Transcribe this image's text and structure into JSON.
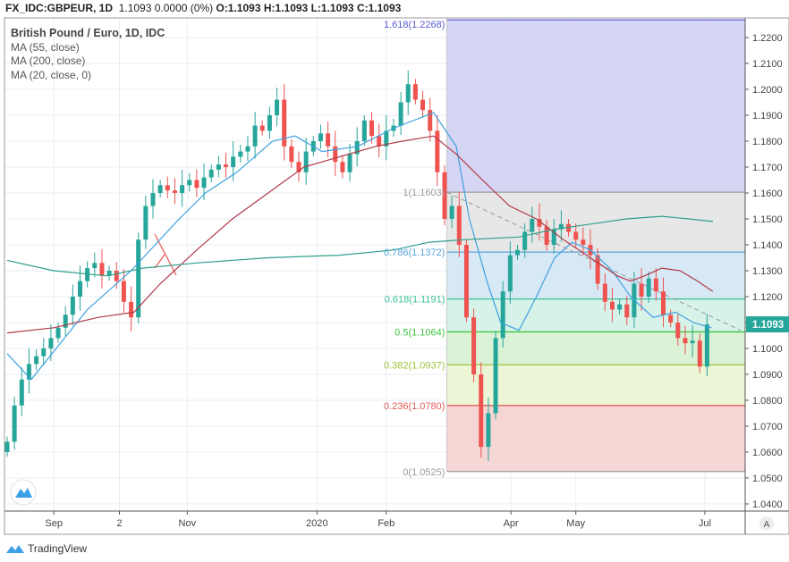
{
  "header": {
    "symbol": "FX_IDC:GBPEUR, 1D",
    "last": "1.1093",
    "change": "0.0000 (0%)",
    "open": "O:1.1093",
    "high": "H:1.1093",
    "low": "L:1.1093",
    "close": "C:1.1093"
  },
  "legend": {
    "title": "British Pound / Euro, 1D, IDC",
    "ma1": "MA (55, close)",
    "ma2": "MA (200, close)",
    "ma3": "MA (20, close, 0)"
  },
  "brand": "TradingView",
  "auto_button": "A",
  "colors": {
    "up": "#26a69a",
    "down": "#ef5350",
    "ma20": "#3fa1e0",
    "ma55": "#b03a48",
    "ma200": "#2f9f8c",
    "last_badge": "#26a69a"
  },
  "chart_data": {
    "type": "candlestick",
    "title": "British Pound / Euro, 1D, IDC",
    "ylim": [
      1.035,
      1.2272
    ],
    "y_ticks": [
      "1.0400",
      "1.0500",
      "1.0600",
      "1.0700",
      "1.0800",
      "1.0900",
      "1.1000",
      "1.1100",
      "1.1200",
      "1.1300",
      "1.1400",
      "1.1500",
      "1.1600",
      "1.1700",
      "1.1800",
      "1.1900",
      "1.2000",
      "1.2100",
      "1.2200"
    ],
    "x_ticks": [
      {
        "label": "Sep",
        "i": 6.4
      },
      {
        "label": "2",
        "i": 15.4
      },
      {
        "label": "Nov",
        "i": 24.7
      },
      {
        "label": "2020",
        "i": 42.5
      },
      {
        "label": "Feb",
        "i": 52.0
      },
      {
        "label": "Apr",
        "i": 69.1
      },
      {
        "label": "May",
        "i": 78.0
      },
      {
        "label": "Jul",
        "i": 95.7
      }
    ],
    "closes": [
      1.064,
      1.078,
      1.088,
      1.094,
      1.097,
      1.1,
      1.104,
      1.108,
      1.113,
      1.12,
      1.126,
      1.131,
      1.133,
      1.128,
      1.13,
      1.126,
      1.118,
      1.112,
      1.142,
      1.155,
      1.16,
      1.163,
      1.161,
      1.16,
      1.163,
      1.165,
      1.162,
      1.166,
      1.169,
      1.171,
      1.17,
      1.174,
      1.176,
      1.178,
      1.186,
      1.184,
      1.19,
      1.196,
      1.178,
      1.172,
      1.168,
      1.176,
      1.18,
      1.183,
      1.178,
      1.172,
      1.168,
      1.175,
      1.18,
      1.188,
      1.182,
      1.178,
      1.184,
      1.186,
      1.195,
      1.202,
      1.196,
      1.192,
      1.184,
      1.168,
      1.15,
      1.155,
      1.14,
      1.112,
      1.09,
      1.062,
      1.075,
      1.104,
      1.122,
      1.136,
      1.138,
      1.145,
      1.15,
      1.147,
      1.14,
      1.146,
      1.148,
      1.145,
      1.142,
      1.14,
      1.136,
      1.125,
      1.118,
      1.115,
      1.117,
      1.112,
      1.125,
      1.12,
      1.127,
      1.122,
      1.113,
      1.11,
      1.104,
      1.102,
      1.103,
      1.093,
      1.1093
    ],
    "series": [
      {
        "name": "MA (20, close, 0)",
        "points": [
          [
            0,
            1.098
          ],
          [
            3.3,
            1.088
          ],
          [
            11,
            1.115
          ],
          [
            17,
            1.13
          ],
          [
            23.6,
            1.15
          ],
          [
            27.2,
            1.16
          ],
          [
            31.5,
            1.168
          ],
          [
            36.4,
            1.18
          ],
          [
            39.5,
            1.182
          ],
          [
            43.2,
            1.176
          ],
          [
            48.1,
            1.178
          ],
          [
            53,
            1.185
          ],
          [
            58.5,
            1.191
          ],
          [
            61.6,
            1.178
          ],
          [
            63.4,
            1.15
          ],
          [
            65.9,
            1.125
          ],
          [
            67.7,
            1.11
          ],
          [
            70.2,
            1.107
          ],
          [
            72.6,
            1.12
          ],
          [
            75.1,
            1.135
          ],
          [
            77.5,
            1.141
          ],
          [
            80,
            1.138
          ],
          [
            83,
            1.13
          ],
          [
            85.5,
            1.12
          ],
          [
            88.6,
            1.112
          ],
          [
            91.7,
            1.114
          ],
          [
            94.1,
            1.11
          ],
          [
            96.6,
            1.108
          ]
        ]
      },
      {
        "name": "MA (55, close)",
        "points": [
          [
            0,
            1.106
          ],
          [
            6.4,
            1.108
          ],
          [
            12.5,
            1.112
          ],
          [
            17.4,
            1.114
          ],
          [
            21,
            1.125
          ],
          [
            26,
            1.138
          ],
          [
            30.9,
            1.15
          ],
          [
            35.8,
            1.16
          ],
          [
            40.7,
            1.17
          ],
          [
            45.6,
            1.174
          ],
          [
            50.6,
            1.178
          ],
          [
            54.2,
            1.18
          ],
          [
            58.5,
            1.182
          ],
          [
            61.6,
            1.175
          ],
          [
            65.2,
            1.165
          ],
          [
            68.9,
            1.155
          ],
          [
            72.6,
            1.15
          ],
          [
            76.3,
            1.142
          ],
          [
            80,
            1.135
          ],
          [
            83.7,
            1.128
          ],
          [
            85.5,
            1.126
          ],
          [
            87.4,
            1.128
          ],
          [
            89.8,
            1.131
          ],
          [
            92.3,
            1.13
          ],
          [
            94.7,
            1.126
          ],
          [
            96.8,
            1.122
          ]
        ]
      },
      {
        "name": "MA (200, close)",
        "points": [
          [
            0,
            1.134
          ],
          [
            6.4,
            1.13
          ],
          [
            13.7,
            1.128
          ],
          [
            18.6,
            1.131
          ],
          [
            26,
            1.133
          ],
          [
            35.8,
            1.135
          ],
          [
            45.6,
            1.136
          ],
          [
            53,
            1.138
          ],
          [
            57.9,
            1.141
          ],
          [
            62.8,
            1.142
          ],
          [
            70.2,
            1.143
          ],
          [
            75.1,
            1.146
          ],
          [
            80,
            1.148
          ],
          [
            84.9,
            1.15
          ],
          [
            89.8,
            1.151
          ],
          [
            93.5,
            1.15
          ],
          [
            96.8,
            1.149
          ]
        ]
      }
    ],
    "last_price": "1.1093",
    "fibonacci": {
      "levels": [
        {
          "ratio": "1.618",
          "price": 1.2268,
          "label": "1.618(1.2268)",
          "color": "#5a5ad0",
          "fill": "#d3d3f3"
        },
        {
          "ratio": "1",
          "price": 1.1603,
          "label": "1(1.1603)",
          "color": "#9a9a9a",
          "fill": "#e6e6e6"
        },
        {
          "ratio": "0.786",
          "price": 1.1372,
          "label": "0.786(1.1372)",
          "color": "#5aa6de",
          "fill": "#d5e8f4"
        },
        {
          "ratio": "0.618",
          "price": 1.1191,
          "label": "0.618(1.1191)",
          "color": "#3cc29a",
          "fill": "#d4f1e8"
        },
        {
          "ratio": "0.5",
          "price": 1.1064,
          "label": "0.5(1.1064)",
          "color": "#3ec63e",
          "fill": "#d8f2d4"
        },
        {
          "ratio": "0.382",
          "price": 1.0937,
          "label": "0.382(1.0937)",
          "color": "#9cc43c",
          "fill": "#ebf4d4"
        },
        {
          "ratio": "0.236",
          "price": 1.078,
          "label": "0.236(1.0780)",
          "color": "#e05a5a",
          "fill": "#f4d4d2"
        },
        {
          "ratio": "0",
          "price": 1.0525,
          "label": "0(1.0525)",
          "color": "#9a9a9a",
          "fill": null
        }
      ],
      "start_i": 60.3
    },
    "trendline": {
      "from": [
        60.3,
        1.1603
      ],
      "to": [
        100.6,
        1.107
      ]
    }
  }
}
